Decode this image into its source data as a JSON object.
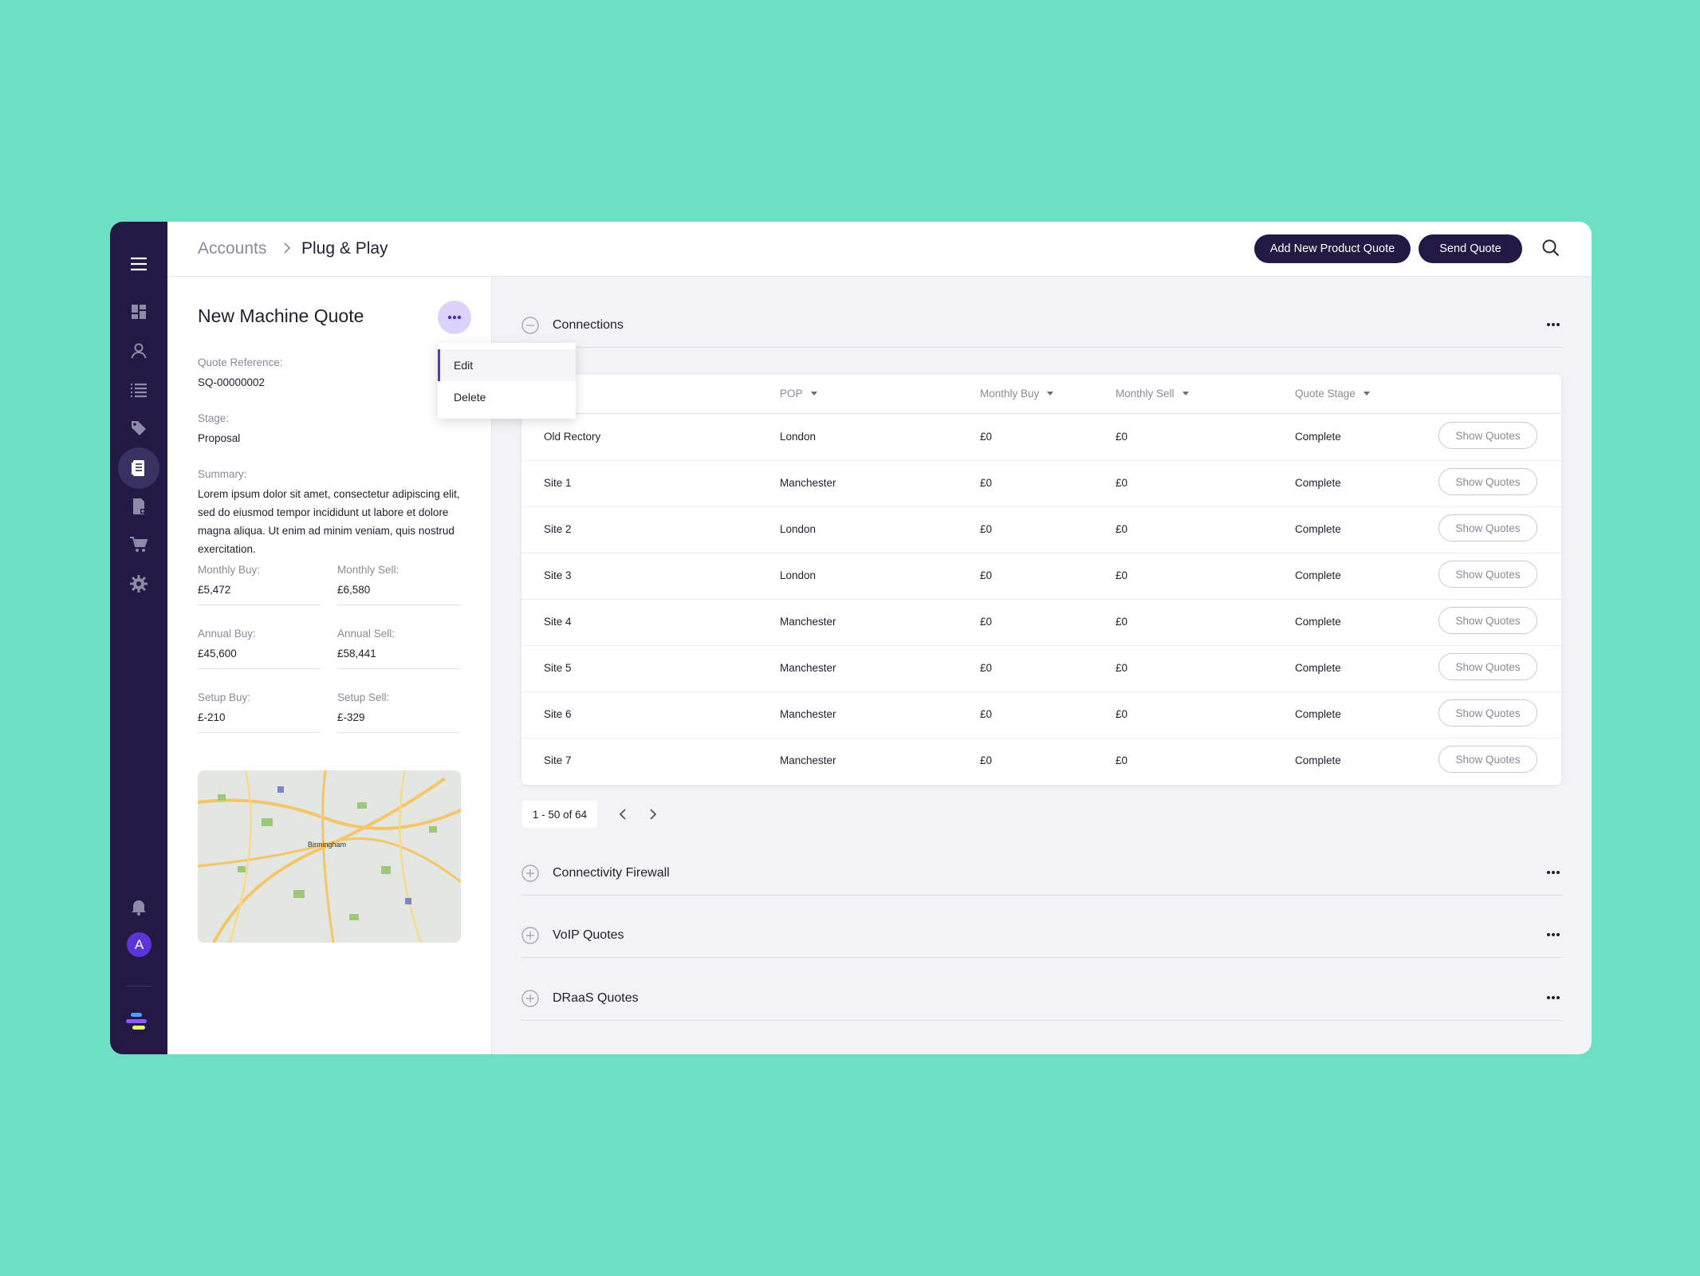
{
  "breadcrumb": {
    "root": "Accounts",
    "current": "Plug & Play"
  },
  "toolbar": {
    "add_label": "Add New Product Quote",
    "send_label": "Send Quote"
  },
  "sidebar": {
    "icons": [
      "menu-icon",
      "dashboard-icon",
      "user-icon",
      "list-icon",
      "tag-icon",
      "document-icon",
      "file-icon",
      "cart-icon",
      "gear-icon"
    ],
    "bottom_icons": [
      "bell-icon"
    ],
    "avatar_initial": "A"
  },
  "quote": {
    "title": "New Machine Quote",
    "reference_label": "Quote Reference:",
    "reference": "SQ-00000002",
    "stage_label": "Stage:",
    "stage": "Proposal",
    "summary_label": "Summary:",
    "summary": "Lorem ipsum dolor sit amet, consectetur adipiscing elit, sed do eiusmod tempor incididunt ut labore et dolore magna aliqua. Ut enim ad minim veniam, quis nostrud exercitation.",
    "metrics": [
      {
        "label": "Monthly Buy:",
        "value": "£5,472"
      },
      {
        "label": "Monthly Sell:",
        "value": "£6,580"
      },
      {
        "label": "Annual Buy:",
        "value": "£45,600"
      },
      {
        "label": "Annual Sell:",
        "value": "£58,441"
      },
      {
        "label": "Setup Buy:",
        "value": "£-210"
      },
      {
        "label": "Setup Sell:",
        "value": "£-329"
      }
    ],
    "map_label": "Birmingham"
  },
  "menu": {
    "items": [
      "Edit",
      "Delete"
    ]
  },
  "sections": {
    "connections": "Connections",
    "firewall": "Connectivity Firewall",
    "voip": "VoIP Quotes",
    "draas": "DRaaS Quotes"
  },
  "table": {
    "headers": [
      "POP",
      "Monthly Buy",
      "Monthly Sell",
      "Quote Stage"
    ],
    "button_label": "Show Quotes",
    "rows": [
      [
        "Old Rectory",
        "London",
        "£0",
        "£0",
        "Complete"
      ],
      [
        "Site 1",
        "Manchester",
        "£0",
        "£0",
        "Complete"
      ],
      [
        "Site 2",
        "London",
        "£0",
        "£0",
        "Complete"
      ],
      [
        "Site 3",
        "London",
        "£0",
        "£0",
        "Complete"
      ],
      [
        "Site 4",
        "Manchester",
        "£0",
        "£0",
        "Complete"
      ],
      [
        "Site 5",
        "Manchester",
        "£0",
        "£0",
        "Complete"
      ],
      [
        "Site 6",
        "Manchester",
        "£0",
        "£0",
        "Complete"
      ],
      [
        "Site 7",
        "Manchester",
        "£0",
        "£0",
        "Complete"
      ]
    ]
  },
  "pagination": {
    "text": "1 - 50 of 64"
  },
  "colors": {
    "background": "#6ddfc3",
    "sidebar": "#221a45",
    "accent": "#5b35d6"
  }
}
